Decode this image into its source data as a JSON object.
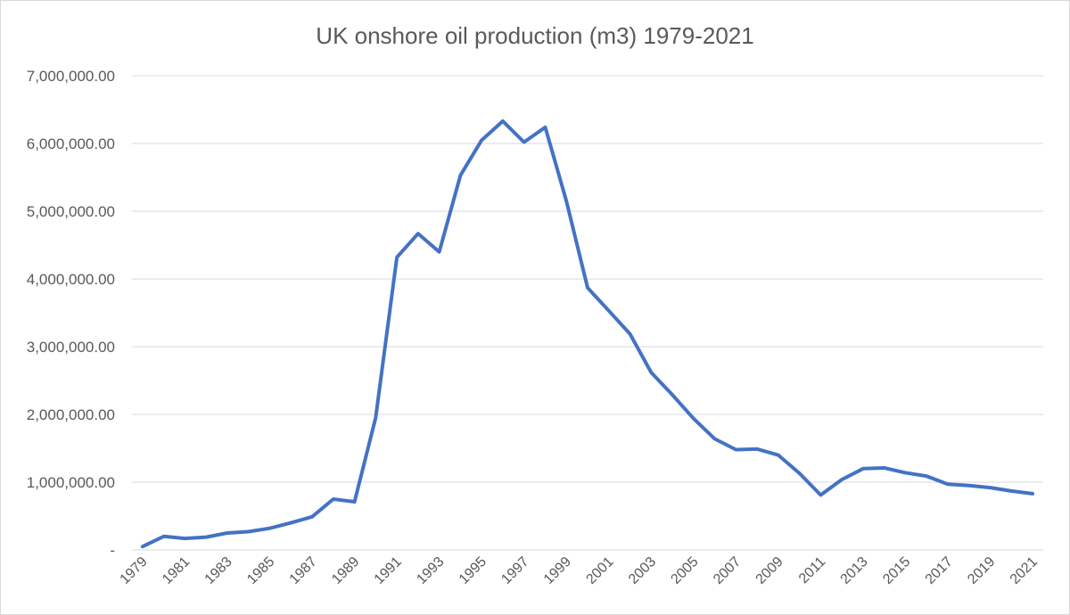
{
  "chart_data": {
    "type": "line",
    "title": "UK onshore oil production (m3) 1979-2021",
    "xlabel": "",
    "ylabel": "",
    "ylim": [
      0,
      7000000
    ],
    "y_ticks": [
      0,
      1000000,
      2000000,
      3000000,
      4000000,
      5000000,
      6000000,
      7000000
    ],
    "y_tick_labels": [
      "-",
      "1,000,000.00",
      "2,000,000.00",
      "3,000,000.00",
      "4,000,000.00",
      "5,000,000.00",
      "6,000,000.00",
      "7,000,000.00"
    ],
    "x_tick_labels": [
      "1979",
      "1981",
      "1983",
      "1985",
      "1987",
      "1989",
      "1991",
      "1993",
      "1995",
      "1997",
      "1999",
      "2001",
      "2003",
      "2005",
      "2007",
      "2009",
      "2011",
      "2013",
      "2015",
      "2017",
      "2019",
      "2021"
    ],
    "grid": true,
    "legend": "none",
    "line_color": "#4472c4",
    "x": [
      1979,
      1980,
      1981,
      1982,
      1983,
      1984,
      1985,
      1986,
      1987,
      1988,
      1989,
      1990,
      1991,
      1992,
      1993,
      1994,
      1995,
      1996,
      1997,
      1998,
      1999,
      2000,
      2001,
      2002,
      2003,
      2004,
      2005,
      2006,
      2007,
      2008,
      2009,
      2010,
      2011,
      2012,
      2013,
      2014,
      2015,
      2016,
      2017,
      2018,
      2019,
      2020,
      2021
    ],
    "series": [
      {
        "values": [
          50000,
          200000,
          170000,
          190000,
          250000,
          270000,
          320000,
          400000,
          490000,
          750000,
          710000,
          1950000,
          4320000,
          4670000,
          4400000,
          5530000,
          6050000,
          6330000,
          6020000,
          6240000,
          5150000,
          3870000,
          3530000,
          3190000,
          2620000,
          2290000,
          1940000,
          1640000,
          1480000,
          1490000,
          1400000,
          1130000,
          810000,
          1040000,
          1200000,
          1210000,
          1140000,
          1090000,
          970000,
          950000,
          920000,
          870000,
          830000
        ]
      }
    ]
  }
}
